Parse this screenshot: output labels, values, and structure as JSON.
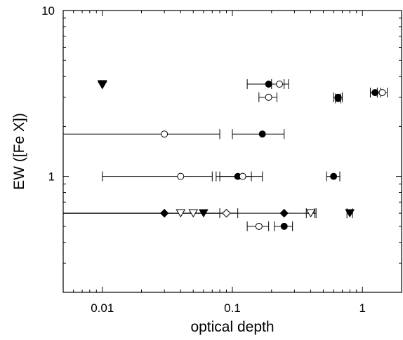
{
  "chart_data": {
    "type": "scatter",
    "title": "",
    "xlabel": "optical depth",
    "ylabel": "EW ([Fe X])",
    "x_scale": "log",
    "y_scale": "log",
    "xlim": [
      0.005,
      2
    ],
    "ylim": [
      0.2,
      10
    ],
    "x_ticks": [
      {
        "value": 0.01,
        "label": "0.01"
      },
      {
        "value": 0.1,
        "label": "0.1"
      },
      {
        "value": 1,
        "label": "1"
      }
    ],
    "y_ticks": [
      {
        "value": 1,
        "label": "1"
      },
      {
        "value": 10,
        "label": "10"
      }
    ],
    "grid": false,
    "legend": "none",
    "colors": {
      "marker": "#000000",
      "axis": "#000000",
      "background": "#ffffff"
    },
    "points": [
      {
        "marker": "down-filled",
        "x": 0.01,
        "y": 3.6
      },
      {
        "marker": "down-filled",
        "x": 0.01,
        "y": 3.55
      },
      {
        "marker": "circle-filled",
        "x": 0.19,
        "y": 3.6,
        "xerr": [
          0.13,
          0.25
        ]
      },
      {
        "marker": "circle-open",
        "x": 0.23,
        "y": 3.6,
        "xerr": [
          0.2,
          0.27
        ]
      },
      {
        "marker": "circle-open",
        "x": 0.19,
        "y": 3.0,
        "xerr": [
          0.16,
          0.22
        ]
      },
      {
        "marker": "circle-filled",
        "x": 0.65,
        "y": 3.0,
        "xerr": [
          0.6,
          0.7
        ]
      },
      {
        "marker": "circle-filled",
        "x": 0.65,
        "y": 2.95,
        "xerr": [
          0.62,
          0.68
        ]
      },
      {
        "marker": "circle-filled",
        "x": 1.25,
        "y": 3.2,
        "xerr": [
          1.15,
          1.38
        ]
      },
      {
        "marker": "circle-open",
        "x": 1.42,
        "y": 3.2,
        "xerr": [
          1.3,
          1.55
        ]
      },
      {
        "marker": "circle-open",
        "x": 0.03,
        "y": 1.8,
        "xerr": [
          0.005,
          0.08
        ]
      },
      {
        "marker": "circle-filled",
        "x": 0.17,
        "y": 1.8,
        "xerr": [
          0.1,
          0.25
        ]
      },
      {
        "marker": "circle-open",
        "x": 0.04,
        "y": 1.0,
        "xerr": [
          0.01,
          0.07
        ]
      },
      {
        "marker": "circle-filled",
        "x": 0.11,
        "y": 1.0,
        "xerr": [
          0.075,
          0.14
        ]
      },
      {
        "marker": "circle-open",
        "x": 0.12,
        "y": 1.0,
        "xerr": [
          0.08,
          0.17
        ]
      },
      {
        "marker": "circle-filled",
        "x": 0.6,
        "y": 1.0,
        "xerr": [
          0.53,
          0.67
        ]
      },
      {
        "marker": "diamond-filled",
        "x": 0.03,
        "y": 0.6,
        "xerr": [
          0.005,
          0.08
        ]
      },
      {
        "marker": "down-open",
        "x": 0.04,
        "y": 0.6
      },
      {
        "marker": "down-open",
        "x": 0.05,
        "y": 0.6
      },
      {
        "marker": "down-filled",
        "x": 0.06,
        "y": 0.6
      },
      {
        "marker": "diamond-open",
        "x": 0.09,
        "y": 0.6,
        "xerr": [
          0.005,
          0.11
        ]
      },
      {
        "marker": "diamond-filled",
        "x": 0.25,
        "y": 0.6,
        "xerr": [
          0.005,
          0.43
        ]
      },
      {
        "marker": "down-open",
        "x": 0.4,
        "y": 0.6,
        "xerr": [
          0.37,
          0.44
        ]
      },
      {
        "marker": "down-filled",
        "x": 0.8,
        "y": 0.6,
        "xerr": [
          0.76,
          0.84
        ]
      },
      {
        "marker": "circle-open",
        "x": 0.16,
        "y": 0.5,
        "xerr": [
          0.13,
          0.19
        ]
      },
      {
        "marker": "circle-filled",
        "x": 0.25,
        "y": 0.5,
        "xerr": [
          0.21,
          0.29
        ]
      }
    ]
  }
}
